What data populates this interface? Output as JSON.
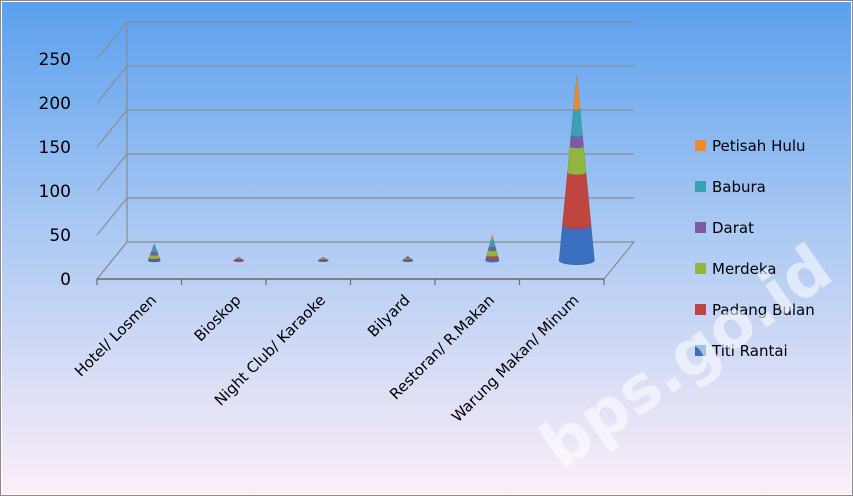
{
  "chart_data": {
    "type": "stacked-cone-3d",
    "categories": [
      "Hotel/ Losmen",
      "Bioskop",
      "Night Club/ Karaoke",
      "Bilyard",
      "Restoran/ R.Makan",
      "Warung Makan/ Minum"
    ],
    "series": [
      {
        "name": "Titi Rantai",
        "values": [
          2,
          0,
          1,
          1,
          3,
          40
        ]
      },
      {
        "name": "Padang Bulan",
        "values": [
          1,
          1,
          1,
          1,
          3,
          60
        ]
      },
      {
        "name": "Merdeka",
        "values": [
          4,
          0,
          1,
          1,
          6,
          30
        ]
      },
      {
        "name": "Darat",
        "values": [
          3,
          1,
          0,
          1,
          4,
          12
        ]
      },
      {
        "name": "Babura",
        "values": [
          8,
          1,
          1,
          1,
          8,
          30
        ]
      },
      {
        "name": "Petisah Hulu",
        "values": [
          1,
          1,
          0,
          0,
          5,
          38
        ]
      }
    ],
    "colors": [
      "#3a6fbf",
      "#c0443f",
      "#93b540",
      "#7b5ba8",
      "#3aa0b2",
      "#f08a2c"
    ],
    "yticks": [
      0,
      50,
      100,
      150,
      200,
      250
    ],
    "ylim": [
      0,
      250
    ],
    "grid": true,
    "legend": "right"
  },
  "watermark": "bps.go.id"
}
